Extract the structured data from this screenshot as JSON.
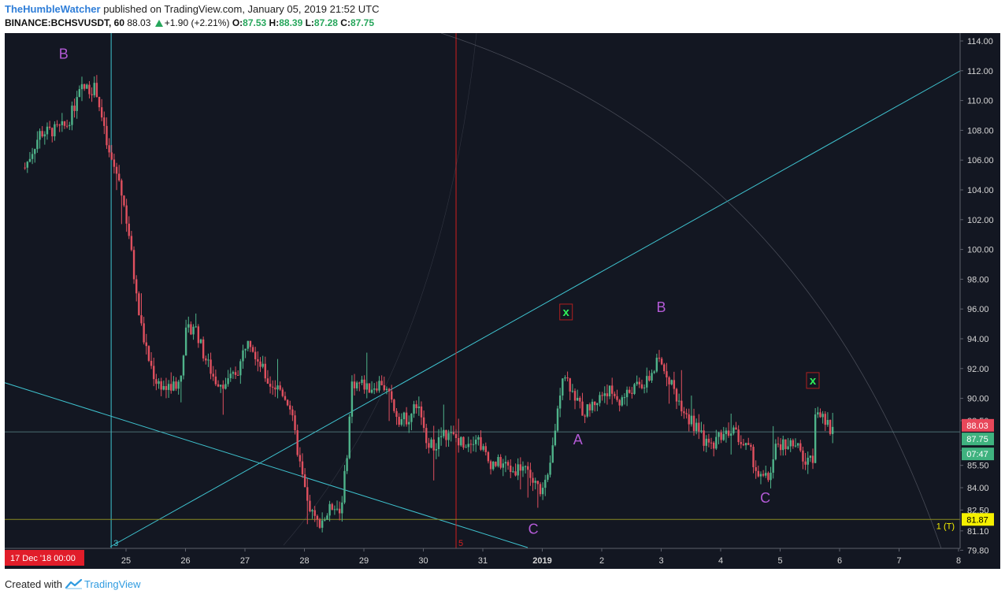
{
  "header": {
    "author": "TheHumbleWatcher",
    "published_text": "published on TradingView.com, January 05, 2019 21:52 UTC",
    "symbol": "BINANCE:BCHSVUSDT, 60",
    "last": "88.03",
    "change": "+1.90 (+2.21%)",
    "o_label": "O:",
    "o_value": "87.53",
    "h_label": "H:",
    "h_value": "88.39",
    "l_label": "L:",
    "l_value": "87.28",
    "c_label": "C:",
    "c_value": "87.75"
  },
  "footer": {
    "created_with": "Created with",
    "brand": "TradingView"
  },
  "colors": {
    "background": "#131722",
    "up": "#4fb38a",
    "down": "#e0505f",
    "trendline": "#3fc4d0",
    "text_axis": "#d6d6d6",
    "label_purple": "#b35ad6",
    "marker_green": "#2ef05a",
    "yellow": "#f5f000",
    "olive_line": "#8a8a22"
  },
  "chart_data": {
    "type": "candlestick",
    "timeframe": "60",
    "y_ticks": [
      "114.00",
      "112.00",
      "110.00",
      "108.00",
      "106.00",
      "104.00",
      "102.00",
      "100.00",
      "98.00",
      "96.00",
      "94.00",
      "92.00",
      "90.00",
      "88.50",
      "86.50",
      "85.50",
      "84.00",
      "82.50",
      "81.10",
      "79.80"
    ],
    "x_ticks": [
      {
        "label": "25",
        "t": 25
      },
      {
        "label": "26",
        "t": 26
      },
      {
        "label": "27",
        "t": 27
      },
      {
        "label": "28",
        "t": 28
      },
      {
        "label": "29",
        "t": 29
      },
      {
        "label": "30",
        "t": 30
      },
      {
        "label": "31",
        "t": 31
      },
      {
        "label": "2019",
        "t": 32
      },
      {
        "label": "2",
        "t": 33
      },
      {
        "label": "3",
        "t": 34
      },
      {
        "label": "4",
        "t": 35
      },
      {
        "label": "5",
        "t": 36
      },
      {
        "label": "6",
        "t": 37
      },
      {
        "label": "7",
        "t": 38
      },
      {
        "label": "8",
        "t": 39
      }
    ],
    "x_cursor_label": "17 Dec '18  00:00",
    "price_labels": {
      "last": {
        "value": 88.03,
        "text": "88.03"
      },
      "close": {
        "value": 87.75,
        "text": "87.75"
      },
      "countdown": {
        "text": "07:47"
      },
      "level": {
        "value": 81.87,
        "text": "81.87",
        "annotation": "1 (T)"
      }
    },
    "wave_labels": [
      {
        "text": "B",
        "t": 23.95,
        "y": 112.8
      },
      {
        "text": "C",
        "t": 31.85,
        "y": 80.9
      },
      {
        "text": "A",
        "t": 32.6,
        "y": 86.9
      },
      {
        "text": "B",
        "t": 34.0,
        "y": 95.8
      },
      {
        "text": "C",
        "t": 35.75,
        "y": 83.0
      }
    ],
    "x_markers": [
      {
        "text": "x",
        "t": 32.4,
        "y": 95.8
      },
      {
        "text": "x",
        "t": 36.55,
        "y": 91.2
      }
    ],
    "vertical_markers": [
      {
        "text": "3",
        "t": 24.75,
        "color": "#3fc4d0"
      },
      {
        "text": "5",
        "t": 30.55,
        "color": "#d02020"
      }
    ],
    "ohlc_path": [
      [
        23.3,
        105.5
      ],
      [
        23.55,
        107.8
      ],
      [
        23.8,
        108.0
      ],
      [
        24.0,
        108.3
      ],
      [
        24.25,
        110.8
      ],
      [
        24.5,
        110.8
      ],
      [
        24.7,
        106.5
      ],
      [
        24.9,
        104.5
      ],
      [
        25.05,
        101.0
      ],
      [
        25.2,
        96.0
      ],
      [
        25.35,
        93.0
      ],
      [
        25.5,
        91.2
      ],
      [
        25.7,
        90.6
      ],
      [
        25.9,
        91.1
      ],
      [
        26.0,
        94.3
      ],
      [
        26.15,
        95.0
      ],
      [
        26.3,
        93.0
      ],
      [
        26.5,
        91.2
      ],
      [
        26.7,
        91.0
      ],
      [
        26.9,
        92.0
      ],
      [
        27.05,
        94.3
      ],
      [
        27.2,
        92.8
      ],
      [
        27.4,
        91.0
      ],
      [
        27.6,
        90.6
      ],
      [
        27.75,
        89.6
      ],
      [
        27.85,
        87.3
      ],
      [
        27.95,
        85.0
      ],
      [
        28.05,
        83.0
      ],
      [
        28.2,
        81.6
      ],
      [
        28.35,
        82.0
      ],
      [
        28.5,
        83.0
      ],
      [
        28.6,
        82.3
      ],
      [
        28.7,
        85.5
      ],
      [
        28.8,
        91.0
      ],
      [
        28.95,
        91.0
      ],
      [
        29.1,
        90.7
      ],
      [
        29.3,
        91.1
      ],
      [
        29.45,
        89.9
      ],
      [
        29.6,
        88.6
      ],
      [
        29.75,
        88.7
      ],
      [
        29.9,
        89.7
      ],
      [
        30.0,
        87.8
      ],
      [
        30.15,
        86.7
      ],
      [
        30.35,
        87.6
      ],
      [
        30.5,
        87.4
      ],
      [
        30.7,
        87.0
      ],
      [
        30.9,
        87.5
      ],
      [
        31.1,
        85.7
      ],
      [
        31.35,
        85.6
      ],
      [
        31.5,
        85.1
      ],
      [
        31.7,
        85.6
      ],
      [
        31.85,
        84.3
      ],
      [
        32.0,
        83.8
      ],
      [
        32.1,
        84.5
      ],
      [
        32.2,
        87.5
      ],
      [
        32.35,
        92.0
      ],
      [
        32.5,
        90.5
      ],
      [
        32.7,
        89.0
      ],
      [
        32.9,
        89.8
      ],
      [
        33.1,
        90.6
      ],
      [
        33.3,
        89.8
      ],
      [
        33.5,
        90.6
      ],
      [
        33.75,
        91.0
      ],
      [
        33.95,
        92.5
      ],
      [
        34.1,
        91.7
      ],
      [
        34.25,
        90.2
      ],
      [
        34.45,
        88.8
      ],
      [
        34.65,
        87.6
      ],
      [
        34.8,
        86.7
      ],
      [
        35.0,
        87.6
      ],
      [
        35.2,
        88.0
      ],
      [
        35.35,
        87.0
      ],
      [
        35.5,
        86.4
      ],
      [
        35.65,
        84.6
      ],
      [
        35.8,
        84.6
      ],
      [
        35.95,
        86.9
      ],
      [
        36.15,
        87.0
      ],
      [
        36.3,
        86.6
      ],
      [
        36.45,
        85.5
      ],
      [
        36.55,
        86.1
      ],
      [
        36.6,
        89.8
      ],
      [
        36.7,
        88.6
      ],
      [
        36.85,
        87.9
      ],
      [
        36.9,
        87.9
      ]
    ]
  }
}
